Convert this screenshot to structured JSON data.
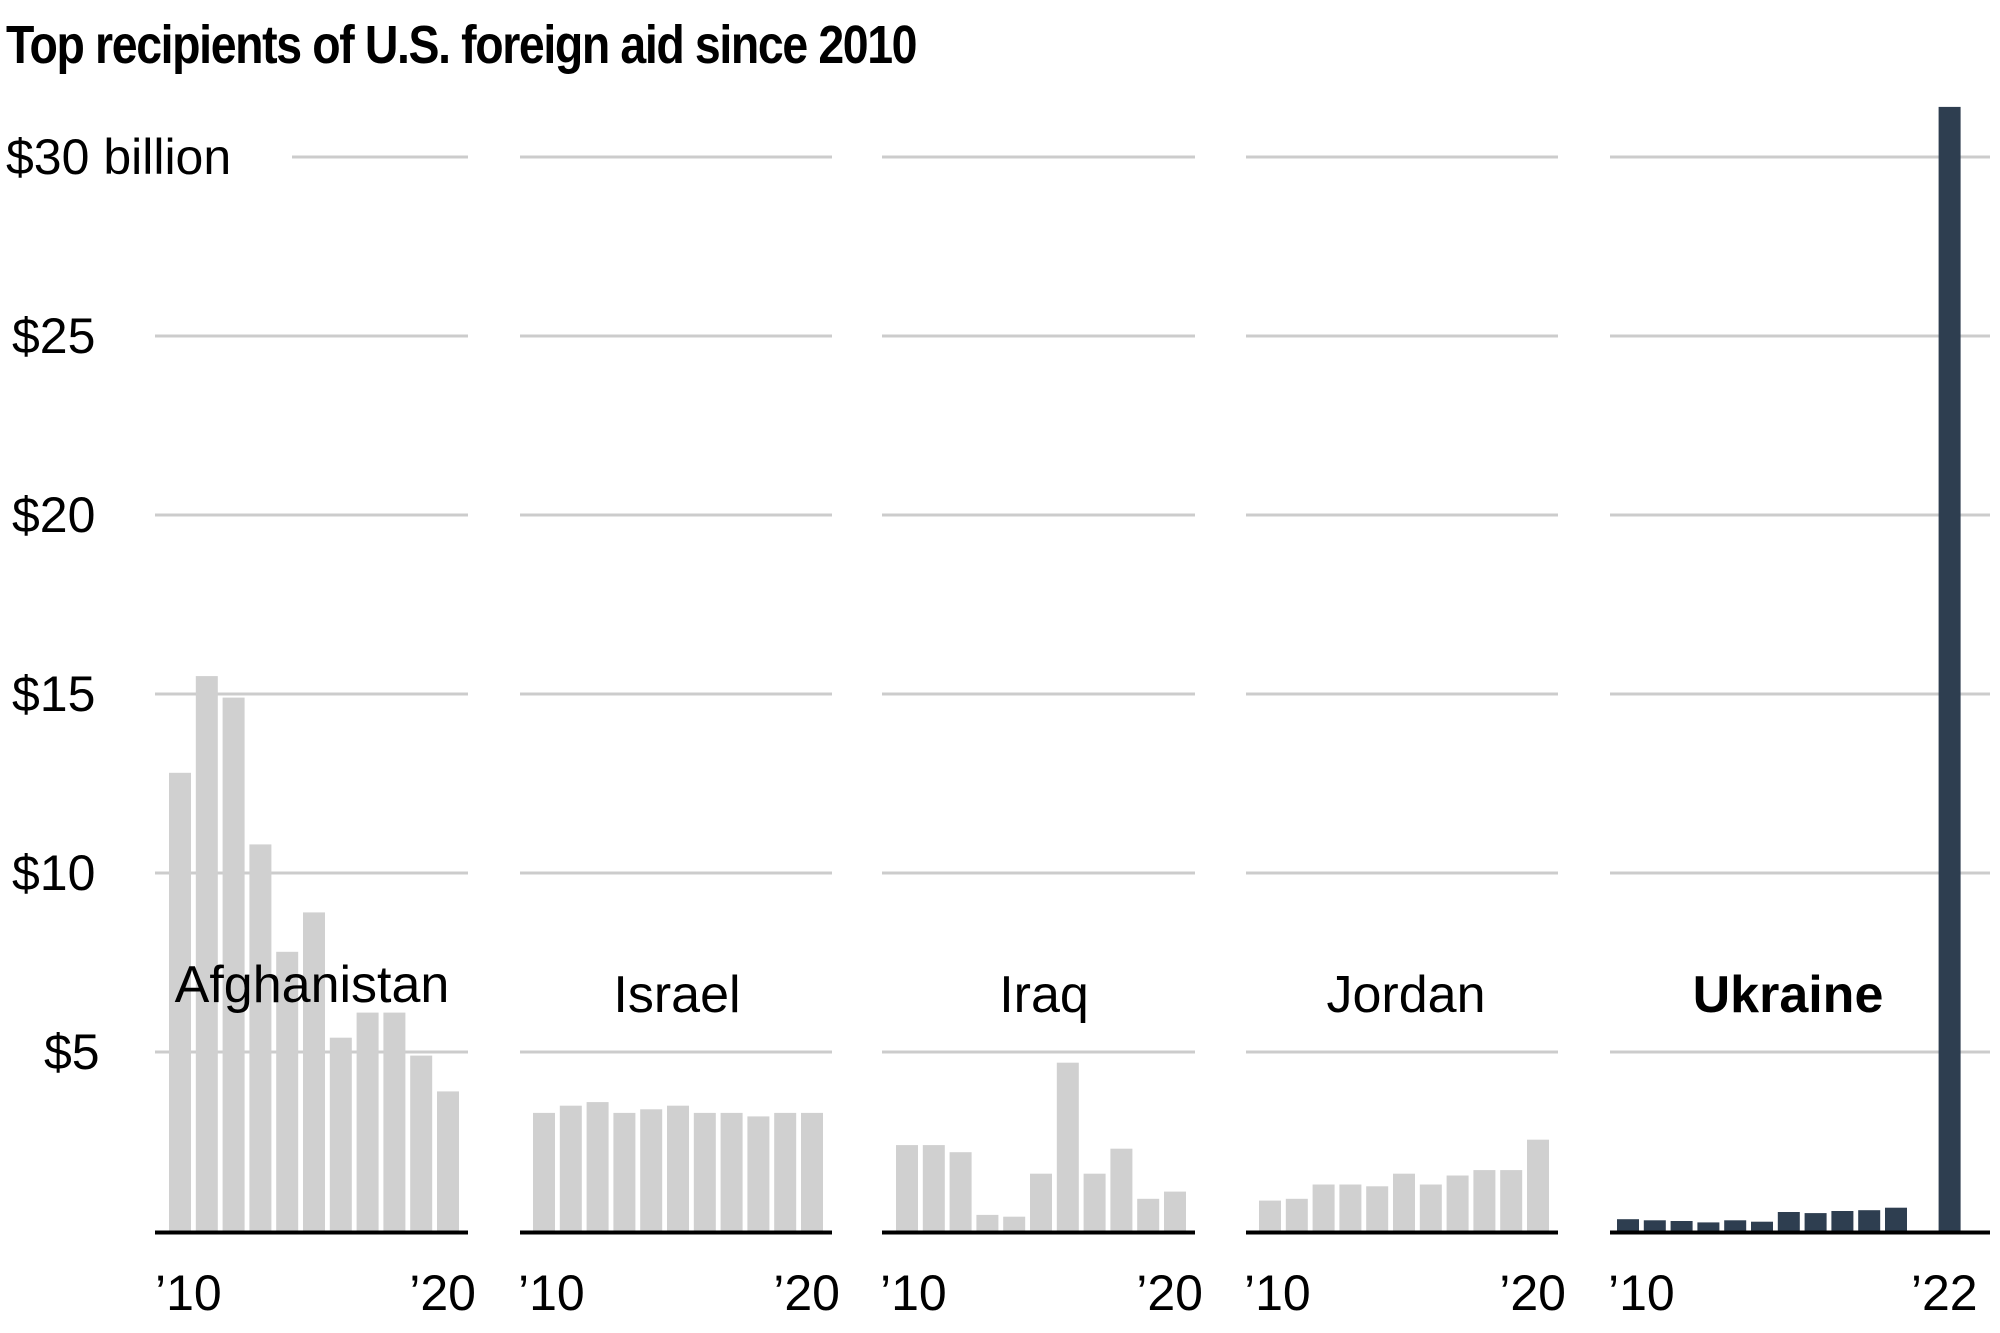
{
  "chart_data": {
    "type": "bar",
    "title": "Top recipients of U.S. foreign aid since 2010",
    "xlabel": "",
    "ylabel": "",
    "unit": "billion USD",
    "ylim": [
      0,
      30
    ],
    "grid": true,
    "y_ticks": [
      {
        "value": 30,
        "label": "$30 billion"
      },
      {
        "value": 25,
        "label": "$25"
      },
      {
        "value": 20,
        "label": "$20"
      },
      {
        "value": 15,
        "label": "$15"
      },
      {
        "value": 10,
        "label": "$10"
      },
      {
        "value": 5,
        "label": "$5"
      }
    ],
    "panels": [
      {
        "name": "Afghanistan",
        "highlight": false,
        "color": "#d0d0d0",
        "years": [
          2010,
          2011,
          2012,
          2013,
          2014,
          2015,
          2016,
          2017,
          2018,
          2019,
          2020
        ],
        "values": [
          12.8,
          15.5,
          14.9,
          10.8,
          7.8,
          8.9,
          5.4,
          6.1,
          6.1,
          4.9,
          3.9
        ],
        "x_tick_labels": [
          "’10",
          "’20"
        ]
      },
      {
        "name": "Israel",
        "highlight": false,
        "color": "#d0d0d0",
        "years": [
          2010,
          2011,
          2012,
          2013,
          2014,
          2015,
          2016,
          2017,
          2018,
          2019,
          2020
        ],
        "values": [
          3.3,
          3.5,
          3.6,
          3.3,
          3.4,
          3.5,
          3.3,
          3.3,
          3.2,
          3.3,
          3.3
        ],
        "x_tick_labels": [
          "’10",
          "’20"
        ]
      },
      {
        "name": "Iraq",
        "highlight": false,
        "color": "#d0d0d0",
        "years": [
          2010,
          2011,
          2012,
          2013,
          2014,
          2015,
          2016,
          2017,
          2018,
          2019,
          2020
        ],
        "values": [
          2.4,
          2.4,
          2.2,
          0.45,
          0.4,
          1.6,
          4.7,
          1.6,
          2.3,
          0.9,
          1.1
        ],
        "x_tick_labels": [
          "’10",
          "’20"
        ]
      },
      {
        "name": "Jordan",
        "highlight": false,
        "color": "#d0d0d0",
        "years": [
          2010,
          2011,
          2012,
          2013,
          2014,
          2015,
          2016,
          2017,
          2018,
          2019,
          2020
        ],
        "values": [
          0.85,
          0.9,
          1.3,
          1.3,
          1.25,
          1.6,
          1.3,
          1.55,
          1.7,
          1.7,
          2.55
        ],
        "x_tick_labels": [
          "’10",
          "’20"
        ]
      },
      {
        "name": "Ukraine",
        "highlight": true,
        "color": "#2e3e50",
        "years": [
          2010,
          2011,
          2012,
          2013,
          2014,
          2015,
          2016,
          2017,
          2018,
          2019,
          2020,
          2021,
          2022
        ],
        "values": [
          0.33,
          0.3,
          0.28,
          0.24,
          0.3,
          0.26,
          0.53,
          0.5,
          0.56,
          0.58,
          0.65,
          null,
          31.4
        ],
        "x_tick_labels": [
          "’10",
          "’22"
        ]
      }
    ]
  },
  "colors": {
    "gridline": "#cccccc",
    "baseline": "#000000",
    "default_bar": "#d0d0d0",
    "highlight_bar": "#2e3e50"
  }
}
